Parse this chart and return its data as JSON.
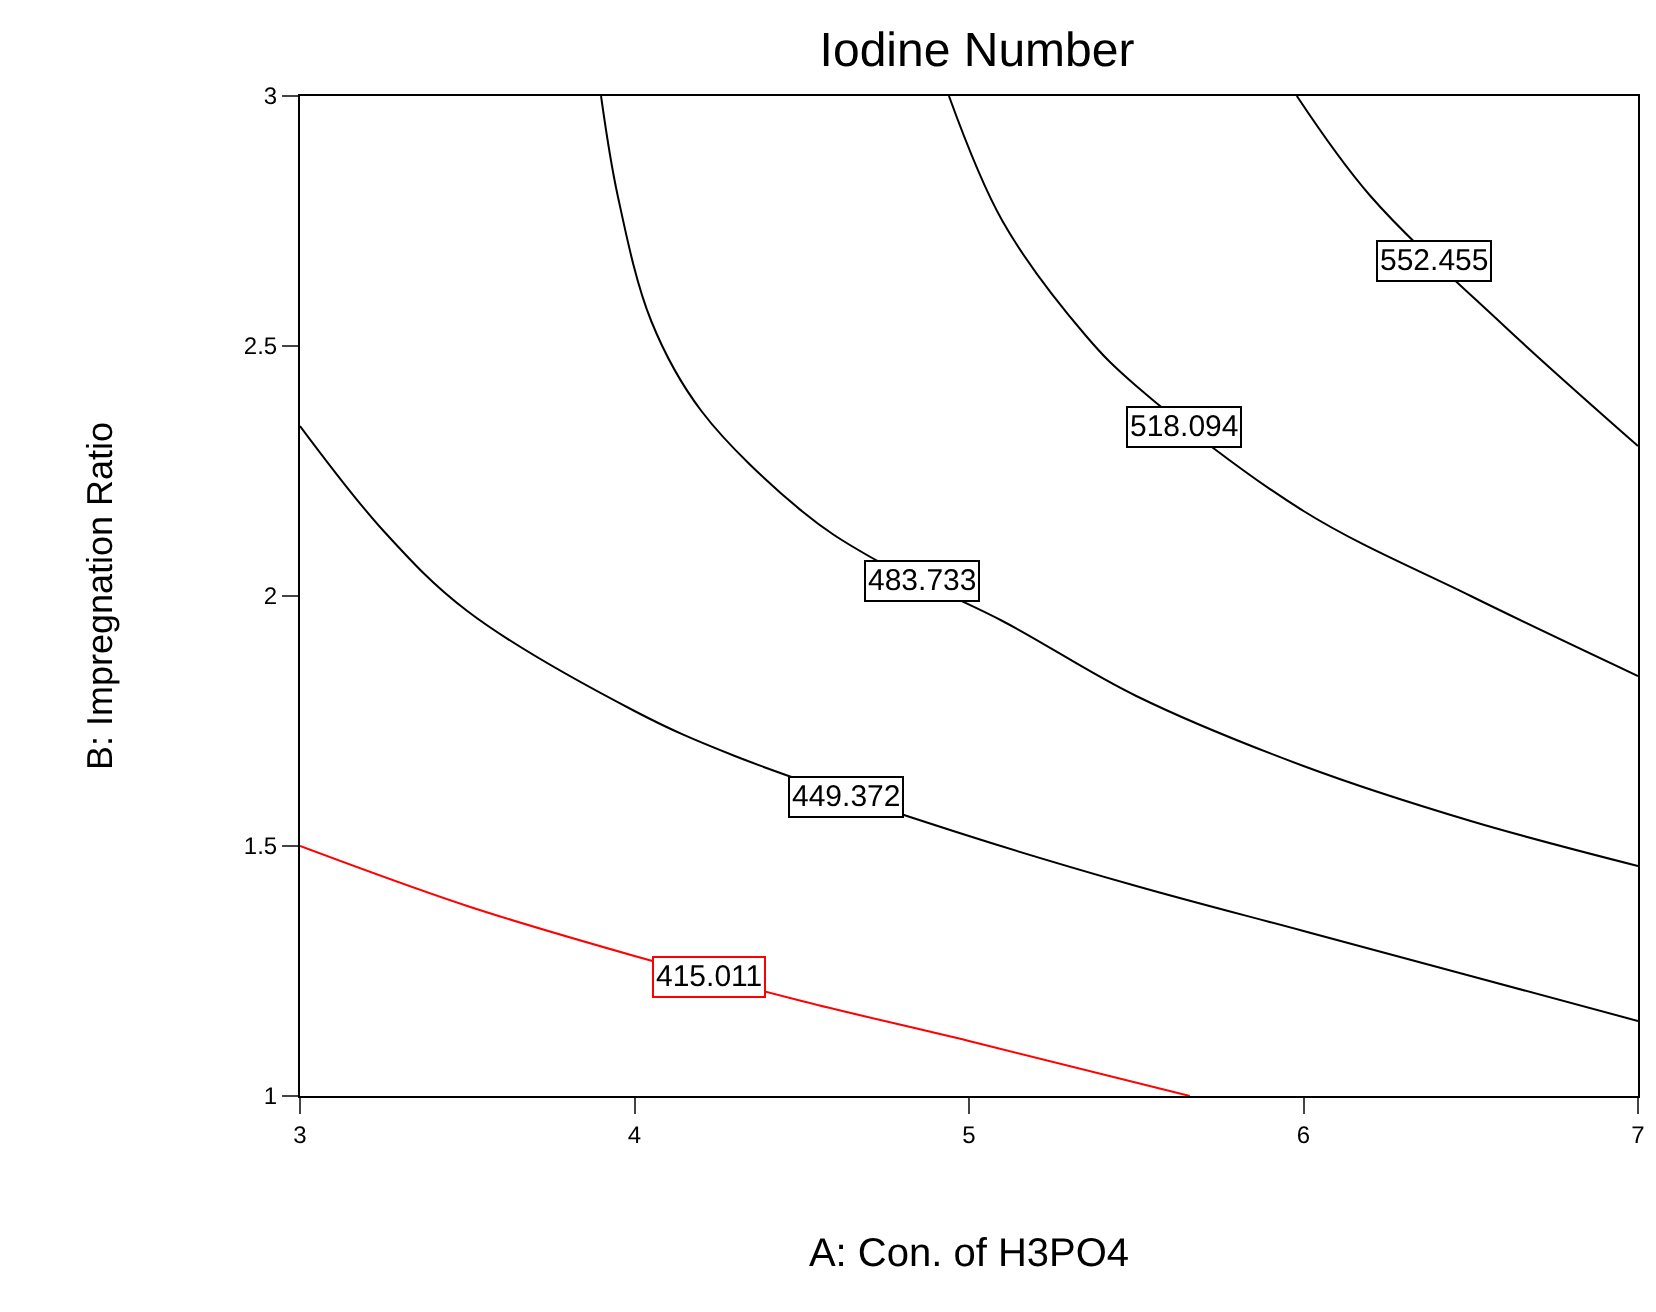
{
  "chart_data": {
    "type": "line",
    "title": "Iodine Number",
    "xlabel": "A: Con. of H3PO4",
    "ylabel": "B: Impregnation Ratio",
    "xlim": [
      3,
      7
    ],
    "xticks": [
      3,
      4,
      5,
      6,
      7
    ],
    "ylim": [
      1,
      3
    ],
    "yticks": [
      1,
      1.5,
      2,
      2.5,
      3
    ],
    "marker": "none",
    "line_style": "solid",
    "series": [
      {
        "color": "#ff0000",
        "x": [
          3,
          3.5,
          4,
          4.5,
          5,
          5.66
        ],
        "values": [
          1.5,
          1.38,
          1.28,
          1.19,
          1.11,
          1.0
        ]
      },
      {
        "color": "#000000",
        "x": [
          3,
          3.25,
          3.5,
          4,
          4.3,
          5,
          5.5,
          6,
          6.5,
          7
        ],
        "values": [
          2.34,
          2.13,
          1.97,
          1.77,
          1.68,
          1.52,
          1.42,
          1.33,
          1.24,
          1.15
        ]
      },
      {
        "color": "#000000",
        "x": [
          3.9,
          3.95,
          4.05,
          4.2,
          4.5,
          4.7,
          5.1,
          5.5,
          6,
          6.5,
          7
        ],
        "values": [
          3,
          2.8,
          2.55,
          2.37,
          2.17,
          2.08,
          1.95,
          1.8,
          1.66,
          1.55,
          1.46
        ]
      },
      {
        "color": "#000000",
        "x": [
          4.94,
          5.1,
          5.35,
          5.5,
          6,
          6.5,
          7
        ],
        "values": [
          3,
          2.75,
          2.52,
          2.42,
          2.17,
          2.0,
          1.84
        ]
      },
      {
        "color": "#000000",
        "x": [
          5.98,
          6.2,
          6.6,
          7
        ],
        "values": [
          3,
          2.8,
          2.54,
          2.3
        ]
      }
    ],
    "annotations": [
      {
        "text": "415.011",
        "x": 4.22,
        "y": 1.24
      },
      {
        "text": "449.372",
        "x": 4.63,
        "y": 1.6
      },
      {
        "text": "483.733",
        "x": 4.86,
        "y": 2.03
      },
      {
        "text": "518.094",
        "x": 5.64,
        "y": 2.34
      },
      {
        "text": "552.455",
        "x": 6.39,
        "y": 2.67
      }
    ]
  }
}
